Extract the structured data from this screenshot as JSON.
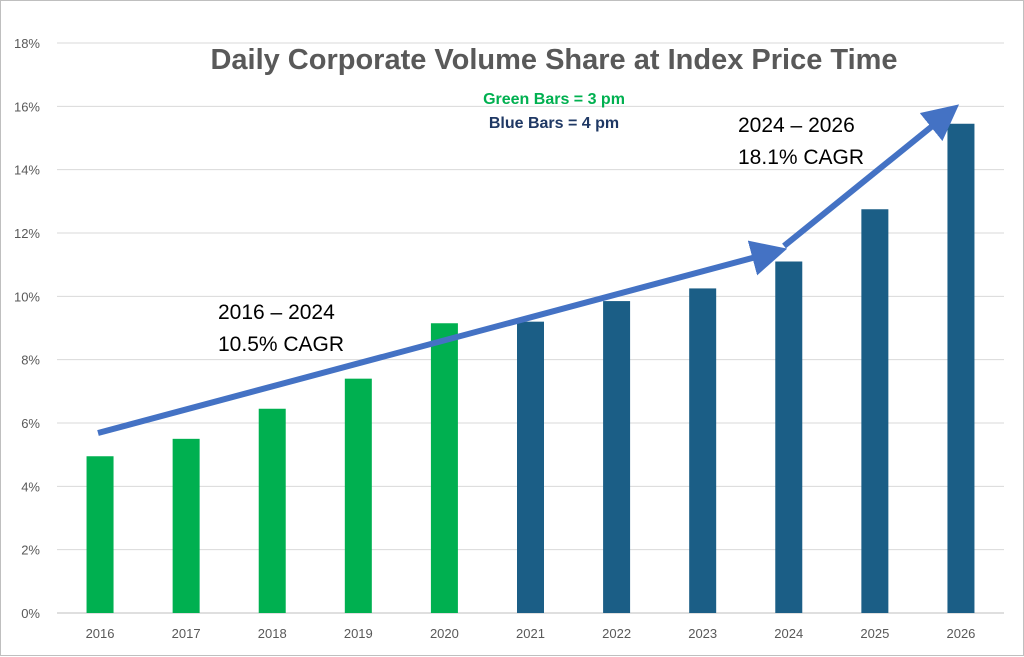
{
  "chart_data": {
    "type": "bar",
    "title": "Daily Corporate Volume Share at Index Price Time",
    "legend_notes": [
      {
        "text": "Green Bars = 3 pm",
        "color": "#00b050"
      },
      {
        "text": "Blue Bars = 4 pm",
        "color": "#1f3864"
      }
    ],
    "categories": [
      "2016",
      "2017",
      "2018",
      "2019",
      "2020",
      "2021",
      "2022",
      "2023",
      "2024",
      "2025",
      "2026"
    ],
    "values": [
      4.95,
      5.5,
      6.45,
      7.4,
      9.15,
      9.2,
      9.85,
      10.25,
      11.1,
      12.75,
      15.45
    ],
    "bar_colors": [
      "#00b050",
      "#00b050",
      "#00b050",
      "#00b050",
      "#00b050",
      "#1b5e86",
      "#1b5e86",
      "#1b5e86",
      "#1b5e86",
      "#1b5e86",
      "#1b5e86"
    ],
    "ylim": [
      0,
      18
    ],
    "yticks": [
      "0%",
      "2%",
      "4%",
      "6%",
      "8%",
      "10%",
      "12%",
      "14%",
      "16%",
      "18%"
    ],
    "y_unit": "%",
    "grid": true,
    "annotations": [
      {
        "line1": "2016 – 2024",
        "line2": "10.5% CAGR"
      },
      {
        "line1": "2024 – 2026",
        "line2": "18.1% CAGR"
      }
    ],
    "arrow_color": "#4472c4"
  }
}
